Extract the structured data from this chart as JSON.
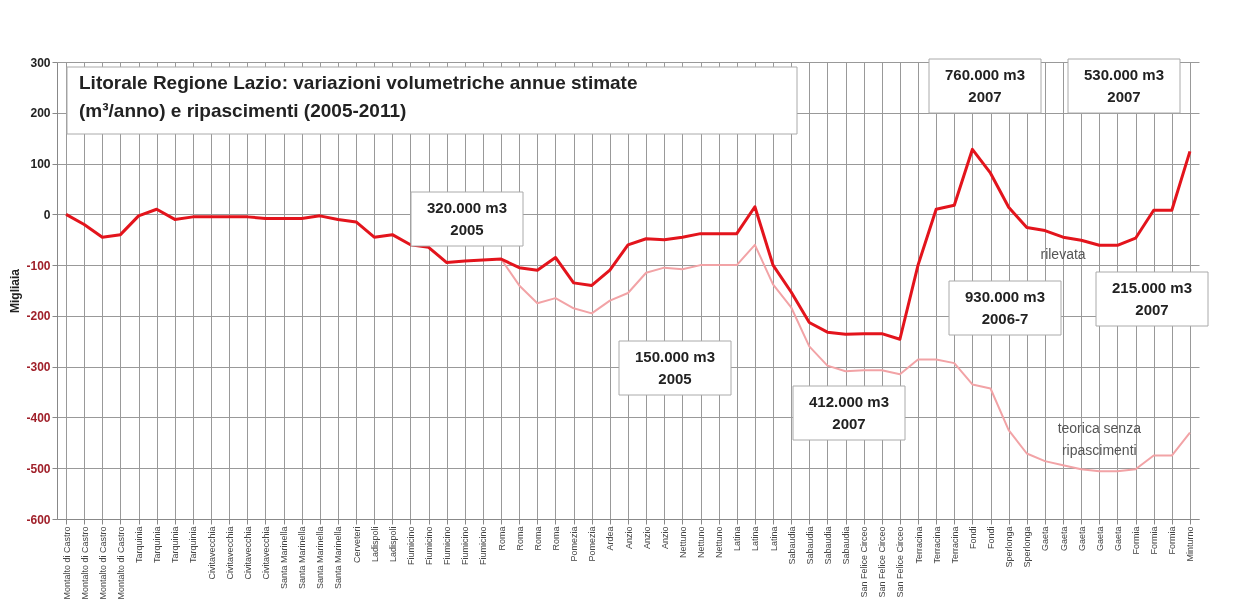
{
  "chart_data": {
    "type": "line",
    "title": "Litorale Regione Lazio: variazioni volumetriche annue stimate (m³/anno)  e ripascimenti (2005-2011)",
    "ylabel": "Migliaia",
    "categories": [
      "Montalto di Castro",
      "Montalto di Castro",
      "Montalto di Castro",
      "Montalto di Castro",
      "Tarquinia",
      "Tarquinia",
      "Tarquinia",
      "Tarquinia",
      "Civitavecchia",
      "Civitavecchia",
      "Civitavecchia",
      "Civitavecchia",
      "Santa Marinella",
      "Santa Marinella",
      "Santa Marinella",
      "Santa Marinella",
      "Cerveteri",
      "Ladispoli",
      "Ladispoli",
      "Fiumicino",
      "Fiumicino",
      "Fiumicino",
      "Fiumicino",
      "Fiumicino",
      "Roma",
      "Roma",
      "Roma",
      "Roma",
      "Pomezia",
      "Pomezia",
      "Ardea",
      "Anzio",
      "Anzio",
      "Anzio",
      "Nettuno",
      "Nettuno",
      "Nettuno",
      "Latina",
      "Latina",
      "Latina",
      "Sabaudia",
      "Sabaudia",
      "Sabaudia",
      "Sabaudia",
      "San Felice Circeo",
      "San Felice Circeo",
      "San Felice Circeo",
      "Terracina",
      "Terracina",
      "Terracina",
      "Fondi",
      "Fondi",
      "Sperlonga",
      "Sperlonga",
      "Gaeta",
      "Gaeta",
      "Gaeta",
      "Gaeta",
      "Gaeta",
      "Formia",
      "Formia",
      "Formia",
      "Minturno"
    ],
    "series": [
      {
        "name": "rilevata",
        "color": "#e3141c",
        "values": [
          0,
          -20,
          -45,
          -40,
          -3,
          10,
          -10,
          -5,
          -5,
          -5,
          -5,
          -8,
          -8,
          -8,
          -3,
          -10,
          -15,
          -45,
          -40,
          -60,
          -65,
          -95,
          -92,
          -90,
          -88,
          -105,
          -110,
          -85,
          -135,
          -140,
          -110,
          -60,
          -48,
          -50,
          -45,
          -38,
          -38,
          -38,
          15,
          -100,
          -153,
          -213,
          -232,
          -236,
          -235,
          -235,
          -246,
          -100,
          10,
          18,
          128,
          81,
          14,
          -26,
          -32,
          -45,
          -51,
          -61,
          -61,
          -47,
          8,
          8,
          124
        ]
      },
      {
        "name": "teorica senza ripascimenti",
        "color": "#f2a3a6",
        "values": [
          null,
          null,
          null,
          null,
          null,
          null,
          null,
          null,
          null,
          null,
          null,
          null,
          null,
          null,
          null,
          null,
          null,
          null,
          null,
          null,
          null,
          null,
          null,
          null,
          -88,
          -140,
          -175,
          -165,
          -185,
          -195,
          -170,
          -155,
          -115,
          -105,
          -108,
          -100,
          -100,
          -100,
          -60,
          -138,
          -183,
          -260,
          -298,
          -309,
          -307,
          -307,
          -315,
          -286,
          -286,
          -293,
          -335,
          -343,
          -425,
          -471,
          -486,
          -494,
          -502,
          -506,
          -506,
          -502,
          -475,
          -475,
          -430
        ]
      }
    ],
    "ylim": [
      -600,
      300
    ],
    "yticks": [
      -600,
      -500,
      -400,
      -300,
      -200,
      -100,
      0,
      100,
      200,
      300
    ],
    "grid": true,
    "annotations": [
      "320.000 m3 2005",
      "150.000 m3 2005",
      "412.000 m3 2007",
      "930.000 m3 2006-7",
      "760.000 m3 2007",
      "530.000 m3 2007",
      "215.000 m3 2007"
    ]
  }
}
